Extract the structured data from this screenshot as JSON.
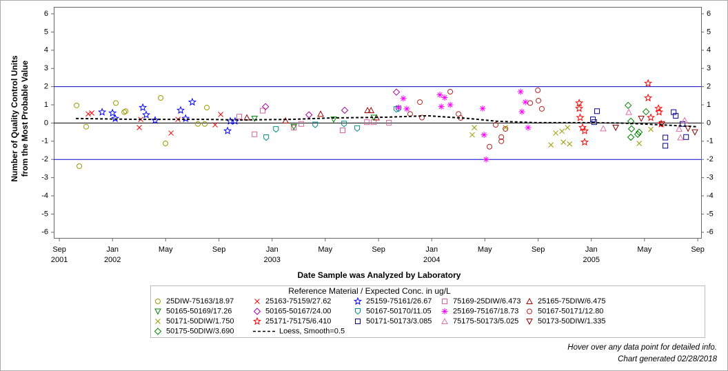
{
  "chart_data": {
    "type": "scatter",
    "y_label": [
      "Number of Quality Control Units",
      "from the Most Probable Value"
    ],
    "x_label": "Date Sample was Analyzed by Laboratory",
    "legend_title": "Reference Material / Expected Conc. in ug/L",
    "footnotes": [
      "Hover over any data point for detailed info.",
      "Chart generated 02/28/2018"
    ],
    "xlim": [
      2001.632,
      2005.688
    ],
    "ylim": [
      -6.31,
      6.38
    ],
    "xticks": [
      {
        "value": 2001.667,
        "label": "Sep 2001"
      },
      {
        "value": 2002.0,
        "label": "Jan 2002"
      },
      {
        "value": 2002.333,
        "label": "May"
      },
      {
        "value": 2002.667,
        "label": "Sep"
      },
      {
        "value": 2003.0,
        "label": "Jan 2003"
      },
      {
        "value": 2003.333,
        "label": "May"
      },
      {
        "value": 2003.667,
        "label": "Sep"
      },
      {
        "value": 2004.0,
        "label": "Jan 2004"
      },
      {
        "value": 2004.333,
        "label": "May"
      },
      {
        "value": 2004.667,
        "label": "Sep"
      },
      {
        "value": 2005.0,
        "label": "Jan 2005"
      },
      {
        "value": 2005.333,
        "label": "May"
      },
      {
        "value": 2005.667,
        "label": "Sep"
      }
    ],
    "yticks": [
      -6,
      -5,
      -4,
      -3,
      -2,
      -1,
      0,
      1,
      2,
      3,
      4,
      5,
      6
    ],
    "reference_lines": [
      {
        "value": 2,
        "color": "#0000cc"
      },
      {
        "value": 0,
        "color": "#000000"
      },
      {
        "value": -2,
        "color": "#0000cc"
      }
    ],
    "series": [
      {
        "name": "25DIW-75163/18.97",
        "marker": "circle",
        "color": "#999900",
        "x": [
          2001.775,
          2001.792,
          2001.835,
          2002.021,
          2002.073,
          2002.082,
          2002.302,
          2002.332,
          2002.535,
          2002.578,
          2002.591
        ],
        "values": [
          0.97,
          -2.37,
          -0.2,
          1.1,
          0.6,
          0.65,
          1.38,
          -1.12,
          -0.05,
          -0.05,
          0.85
        ]
      },
      {
        "name": "25163-75159/27.62",
        "marker": "x",
        "color": "#ff0000",
        "x": [
          2001.848,
          2001.87,
          2002.168,
          2002.177,
          2002.367,
          2002.41,
          2002.643,
          2002.678
        ],
        "values": [
          0.5,
          0.55,
          -0.25,
          0.2,
          -0.55,
          0.2,
          -0.1,
          0.47
        ]
      },
      {
        "name": "25159-75161/26.67",
        "marker": "star",
        "color": "#0000ff",
        "x": [
          2001.935,
          2002.0,
          2002.017,
          2002.19,
          2002.211,
          2002.267,
          2002.427,
          2002.458,
          2002.5,
          2002.721,
          2002.738,
          2002.768
        ],
        "values": [
          0.6,
          0.55,
          0.25,
          0.85,
          0.45,
          0.15,
          0.7,
          0.25,
          1.15,
          -0.43,
          0.1,
          0.1
        ]
      },
      {
        "name": "75169-25DIW/6.473",
        "marker": "square",
        "color": "#d8609a",
        "x": [
          2002.794,
          2002.89,
          2002.941,
          2003.136,
          2003.183,
          2003.442,
          2003.594,
          2003.637,
          2003.732
        ],
        "values": [
          0.35,
          -0.62,
          0.68,
          -0.25,
          -0.05,
          -0.4,
          0.05,
          0.05,
          0.02
        ]
      },
      {
        "name": "25165-75DIW/6.475",
        "marker": "triangle",
        "color": "#a00000",
        "x": [
          2002.842,
          2003.084,
          2003.304,
          2003.598,
          2003.62,
          2003.654
        ],
        "values": [
          0.3,
          0.13,
          0.5,
          0.7,
          0.7,
          0.3
        ]
      },
      {
        "name": "50165-50169/17.26",
        "marker": "down-triangle",
        "color": "#008000",
        "x": [
          2002.89,
          2003.136,
          2003.386,
          2003.637
        ],
        "values": [
          0.25,
          -0.2,
          0.2,
          0.3
        ]
      },
      {
        "name": "50165-50167/24.00",
        "marker": "diamond",
        "color": "#a000a0",
        "x": [
          2002.959,
          2003.231,
          2003.455,
          2003.779
        ],
        "values": [
          0.9,
          0.45,
          0.7,
          1.7
        ]
      },
      {
        "name": "50167-50170/11.05",
        "marker": "shield",
        "color": "#008b8b",
        "x": [
          2002.963,
          2003.024,
          2003.27,
          2003.451,
          2003.533,
          2003.779,
          2003.792
        ],
        "values": [
          -0.8,
          -0.35,
          -0.1,
          -0.05,
          -0.3,
          0.75,
          0.78
        ]
      },
      {
        "name": "25169-75167/18.73",
        "marker": "asterisk",
        "color": "#ff00ff",
        "x": [
          2003.792,
          2003.822,
          2003.844,
          2004.051,
          2004.06,
          2004.081,
          2004.116,
          2004.319,
          2004.328,
          2004.341,
          2004.557,
          2004.565,
          2004.587,
          2004.604
        ],
        "values": [
          0.85,
          1.35,
          0.78,
          1.55,
          0.9,
          1.4,
          1.0,
          0.8,
          -0.65,
          -2.0,
          1.72,
          0.62,
          1.15,
          -0.25
        ]
      },
      {
        "name": "50167-50171/12.80",
        "marker": "circle",
        "color": "#b22222",
        "x": [
          2003.865,
          2003.926,
          2003.939,
          2004.116,
          2004.168,
          2004.181,
          2004.362,
          2004.401,
          2004.436,
          2004.436,
          2004.462,
          2004.617,
          2004.665,
          2004.669,
          2004.69
        ],
        "values": [
          0.5,
          1.15,
          0.3,
          1.72,
          0.5,
          0.28,
          -1.3,
          -0.1,
          -0.77,
          -1.0,
          -0.32,
          1.1,
          1.8,
          1.23,
          0.78
        ]
      },
      {
        "name": "50171-50DIW/1.750",
        "marker": "x",
        "color": "#999900",
        "x": [
          2004.254,
          2004.267,
          2004.462,
          2004.747,
          2004.777,
          2004.816,
          2004.825,
          2004.851,
          2004.864,
          2005.3,
          2005.373
        ],
        "values": [
          -0.65,
          -0.25,
          -0.25,
          -1.2,
          -0.55,
          -0.45,
          -1.05,
          -0.25,
          -1.15,
          -1.12,
          -0.35
        ]
      },
      {
        "name": "25171-75175/6.410",
        "marker": "star",
        "color": "#ff0000",
        "x": [
          2004.924,
          2004.924,
          2004.93,
          2004.945,
          2004.958,
          2004.958,
          2005.356,
          2005.356,
          2005.373,
          2005.421,
          2005.425,
          2005.438
        ],
        "values": [
          1.1,
          0.8,
          0.3,
          -0.25,
          -0.43,
          -1.05,
          2.18,
          1.38,
          0.3,
          0.8,
          0.6,
          -0.05
        ]
      },
      {
        "name": "50171-50173/3.085",
        "marker": "square",
        "color": "#00008b",
        "x": [
          2005.01,
          2005.018,
          2005.036,
          2005.464,
          2005.464,
          2005.516,
          2005.529,
          2005.572,
          2005.594
        ],
        "values": [
          0.2,
          0.05,
          0.65,
          -0.8,
          -1.25,
          0.6,
          0.4,
          -0.05,
          -0.77
        ]
      },
      {
        "name": "75175-50173/5.025",
        "marker": "triangle",
        "color": "#e070a0",
        "x": [
          2005.075,
          2005.235,
          2005.55,
          2005.559,
          2005.585
        ],
        "values": [
          -0.3,
          0.6,
          -0.32,
          -0.8,
          0.15
        ]
      },
      {
        "name": "50173-50DIW/1.335",
        "marker": "down-triangle",
        "color": "#8b0000",
        "x": [
          2005.153,
          2005.313,
          2005.442,
          2005.606,
          2005.649
        ],
        "values": [
          -0.25,
          0.25,
          -0.05,
          -0.3,
          -0.5
        ]
      },
      {
        "name": "50175-50DIW/3.690",
        "marker": "diamond",
        "color": "#008000",
        "x": [
          2005.231,
          2005.248,
          2005.252,
          2005.248,
          2005.291,
          2005.3,
          2005.343
        ],
        "values": [
          0.97,
          0.1,
          -0.32,
          -0.78,
          -0.62,
          -0.5,
          0.62
        ]
      },
      {
        "name": "Loess, Smooth=0.5",
        "line": "dashed",
        "color": "#000000",
        "x": [
          2001.771,
          2002.16,
          2002.591,
          2002.807,
          2003.11,
          2003.369,
          2003.715,
          2003.974,
          2004.233,
          2004.406,
          2004.665,
          2004.967,
          2005.183,
          2005.442,
          2005.658
        ],
        "values": [
          0.25,
          0.2,
          0.2,
          0.17,
          0.2,
          0.28,
          0.32,
          0.4,
          0.25,
          0.1,
          0.02,
          0.02,
          0,
          -0.1,
          -0.2
        ]
      }
    ]
  }
}
